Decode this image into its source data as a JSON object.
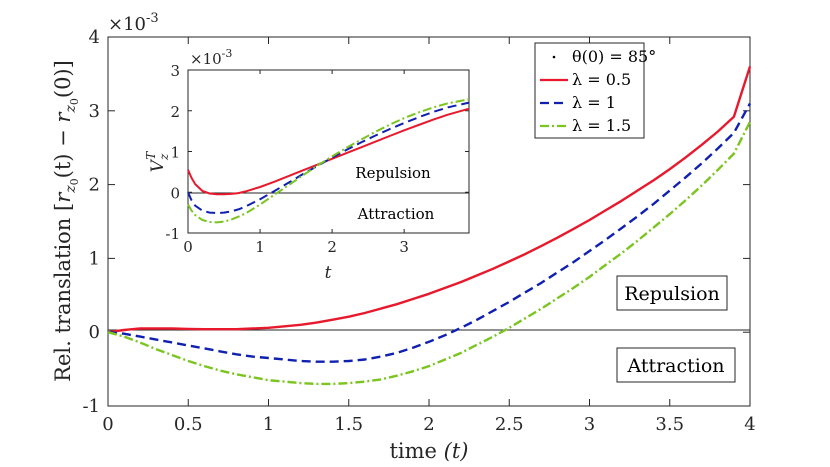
{
  "chart_data": [
    {
      "type": "line",
      "xlabel": "time",
      "xlabel_var": "(t)",
      "ylabel": "Rel. translation [r_z0(t) − r_z0(0)]",
      "ylabel_parts": [
        "Rel. translation [",
        "r",
        "z",
        "0",
        "(t) − ",
        "r",
        "z",
        "0",
        "(0)]"
      ],
      "y_scale_label": "×10",
      "y_scale_exp": "-3",
      "xlim": [
        0,
        4
      ],
      "ylim": [
        -1,
        4
      ],
      "xticks": [
        "0",
        "0.5",
        "1",
        "1.5",
        "2",
        "2.5",
        "3",
        "3.5",
        "4"
      ],
      "xtick_values": [
        0,
        0.5,
        1,
        1.5,
        2,
        2.5,
        3,
        3.5,
        4
      ],
      "yticks": [
        "-1",
        "0",
        "1",
        "2",
        "3",
        "4"
      ],
      "ytick_values": [
        -1,
        0,
        1,
        2,
        3,
        4
      ],
      "zero_line": true,
      "annotations": [
        "Repulsion",
        "Attraction"
      ],
      "legend": {
        "placement": "top-right",
        "entries": [
          {
            "marker": "·",
            "text": "θ(0) = 85°"
          },
          {
            "style": "solid",
            "color": "#e8192c",
            "text": "λ = 0.5"
          },
          {
            "style": "dashed",
            "color": "#1020b0",
            "text": "λ = 1"
          },
          {
            "style": "dashdot",
            "color": "#7ac520",
            "text": "λ = 1.5"
          }
        ]
      },
      "series": [
        {
          "name": "λ = 0.5",
          "color": "#e8192c",
          "style": "solid",
          "x": [
            0,
            0.1,
            0.2,
            0.3,
            0.4,
            0.5,
            0.6,
            0.7,
            0.8,
            0.9,
            1.0,
            1.1,
            1.2,
            1.3,
            1.4,
            1.5,
            1.6,
            1.7,
            1.8,
            1.9,
            2.0,
            2.1,
            2.2,
            2.3,
            2.4,
            2.5,
            2.6,
            2.7,
            2.8,
            2.9,
            3.0,
            3.1,
            3.2,
            3.3,
            3.4,
            3.5,
            3.6,
            3.7,
            3.8,
            3.9,
            4.0
          ],
          "y": [
            0,
            0.03,
            0.05,
            0.05,
            0.05,
            0.045,
            0.04,
            0.04,
            0.04,
            0.05,
            0.06,
            0.08,
            0.1,
            0.13,
            0.17,
            0.21,
            0.26,
            0.32,
            0.38,
            0.45,
            0.52,
            0.6,
            0.68,
            0.77,
            0.86,
            0.96,
            1.06,
            1.17,
            1.28,
            1.4,
            1.52,
            1.65,
            1.78,
            1.92,
            2.06,
            2.21,
            2.37,
            2.54,
            2.72,
            2.92,
            3.6
          ]
        },
        {
          "name": "λ = 1",
          "color": "#1020b0",
          "style": "dashed",
          "x": [
            0,
            0.1,
            0.2,
            0.3,
            0.4,
            0.5,
            0.6,
            0.7,
            0.8,
            0.9,
            1.0,
            1.1,
            1.2,
            1.3,
            1.4,
            1.5,
            1.6,
            1.7,
            1.8,
            1.9,
            2.0,
            2.1,
            2.2,
            2.3,
            2.4,
            2.5,
            2.6,
            2.7,
            2.8,
            2.9,
            3.0,
            3.1,
            3.2,
            3.3,
            3.4,
            3.5,
            3.6,
            3.7,
            3.8,
            3.9,
            4.0
          ],
          "y": [
            0,
            -0.02,
            -0.06,
            -0.1,
            -0.14,
            -0.18,
            -0.22,
            -0.26,
            -0.3,
            -0.33,
            -0.35,
            -0.37,
            -0.39,
            -0.4,
            -0.4,
            -0.39,
            -0.37,
            -0.33,
            -0.28,
            -0.21,
            -0.13,
            -0.04,
            0.06,
            0.17,
            0.29,
            0.41,
            0.54,
            0.67,
            0.81,
            0.95,
            1.1,
            1.25,
            1.41,
            1.57,
            1.74,
            1.92,
            2.1,
            2.29,
            2.49,
            2.7,
            3.1
          ]
        },
        {
          "name": "λ = 1.5",
          "color": "#7ac520",
          "style": "dashdot",
          "x": [
            0,
            0.1,
            0.2,
            0.3,
            0.4,
            0.5,
            0.6,
            0.7,
            0.8,
            0.9,
            1.0,
            1.1,
            1.2,
            1.3,
            1.4,
            1.5,
            1.6,
            1.7,
            1.8,
            1.9,
            2.0,
            2.1,
            2.2,
            2.3,
            2.4,
            2.5,
            2.6,
            2.7,
            2.8,
            2.9,
            3.0,
            3.1,
            3.2,
            3.3,
            3.4,
            3.5,
            3.6,
            3.7,
            3.8,
            3.9,
            4.0
          ],
          "y": [
            0,
            -0.06,
            -0.14,
            -0.23,
            -0.31,
            -0.39,
            -0.46,
            -0.52,
            -0.57,
            -0.61,
            -0.65,
            -0.67,
            -0.69,
            -0.7,
            -0.7,
            -0.69,
            -0.67,
            -0.64,
            -0.59,
            -0.53,
            -0.46,
            -0.37,
            -0.28,
            -0.17,
            -0.06,
            0.06,
            0.19,
            0.32,
            0.46,
            0.6,
            0.75,
            0.91,
            1.07,
            1.24,
            1.42,
            1.6,
            1.79,
            1.99,
            2.2,
            2.42,
            2.85
          ]
        }
      ]
    },
    {
      "type": "line",
      "xlabel": "t",
      "ylabel": "V",
      "ylabel_sub": "z",
      "ylabel_sup": "T",
      "y_scale_label": "×10",
      "y_scale_exp": "-3",
      "xlim": [
        0,
        3.9
      ],
      "ylim": [
        -1,
        3
      ],
      "xticks": [
        "0",
        "1",
        "2",
        "3"
      ],
      "xtick_values": [
        0,
        1,
        2,
        3
      ],
      "yticks": [
        "-1",
        "0",
        "1",
        "2",
        "3"
      ],
      "ytick_values": [
        -1,
        0,
        1,
        2,
        3
      ],
      "zero_line": true,
      "annotations": [
        "Repulsion",
        "Attraction"
      ],
      "series": [
        {
          "name": "λ = 0.5",
          "color": "#e8192c",
          "style": "solid",
          "x": [
            0,
            0.05,
            0.1,
            0.2,
            0.3,
            0.4,
            0.5,
            0.6,
            0.7,
            0.8,
            1.0,
            1.2,
            1.4,
            1.6,
            1.8,
            2.0,
            2.2,
            2.4,
            2.6,
            2.8,
            3.0,
            3.2,
            3.4,
            3.6,
            3.9
          ],
          "y": [
            0.55,
            0.35,
            0.2,
            0.03,
            -0.03,
            -0.05,
            -0.05,
            -0.04,
            -0.02,
            0.02,
            0.13,
            0.26,
            0.4,
            0.54,
            0.68,
            0.82,
            0.96,
            1.1,
            1.24,
            1.38,
            1.52,
            1.65,
            1.78,
            1.9,
            2.05
          ]
        },
        {
          "name": "λ = 1",
          "color": "#1020b0",
          "style": "dashed",
          "x": [
            0,
            0.05,
            0.1,
            0.2,
            0.3,
            0.4,
            0.5,
            0.6,
            0.7,
            0.8,
            1.0,
            1.2,
            1.4,
            1.6,
            1.8,
            2.0,
            2.2,
            2.4,
            2.6,
            2.8,
            3.0,
            3.2,
            3.4,
            3.6,
            3.9
          ],
          "y": [
            0,
            -0.2,
            -0.33,
            -0.45,
            -0.5,
            -0.51,
            -0.5,
            -0.47,
            -0.42,
            -0.35,
            -0.17,
            0.03,
            0.24,
            0.45,
            0.65,
            0.85,
            1.04,
            1.22,
            1.39,
            1.55,
            1.7,
            1.84,
            1.97,
            2.08,
            2.2
          ]
        },
        {
          "name": "λ = 1.5",
          "color": "#7ac520",
          "style": "dashdot",
          "x": [
            0,
            0.05,
            0.1,
            0.2,
            0.3,
            0.4,
            0.5,
            0.6,
            0.7,
            0.8,
            1.0,
            1.2,
            1.4,
            1.6,
            1.8,
            2.0,
            2.2,
            2.4,
            2.6,
            2.8,
            3.0,
            3.2,
            3.4,
            3.6,
            3.9
          ],
          "y": [
            -0.3,
            -0.45,
            -0.56,
            -0.68,
            -0.73,
            -0.74,
            -0.72,
            -0.67,
            -0.6,
            -0.52,
            -0.3,
            -0.06,
            0.18,
            0.42,
            0.66,
            0.88,
            1.09,
            1.29,
            1.48,
            1.66,
            1.82,
            1.96,
            2.08,
            2.18,
            2.28
          ]
        }
      ]
    }
  ]
}
